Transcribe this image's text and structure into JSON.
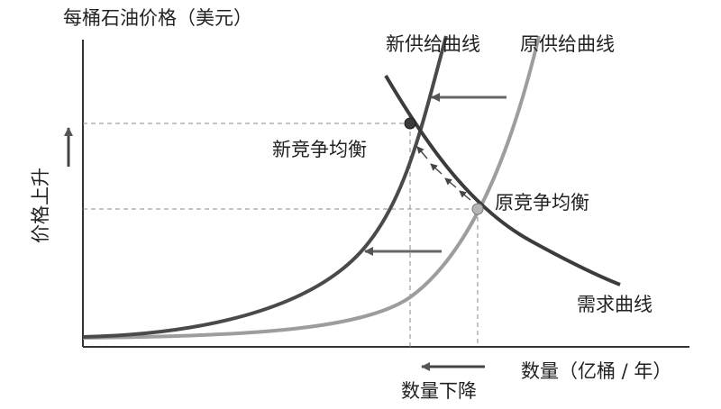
{
  "chart_data": {
    "type": "line",
    "title": "",
    "ylabel": "每桶石油价格（美元）",
    "xlabel": "数量（亿桶 / 年）",
    "side_label": "价格上升",
    "bottom_label": "数量下降",
    "curves": {
      "new_supply": {
        "name": "新供给曲线",
        "color": "#4a4a4a"
      },
      "old_supply": {
        "name": "原供给曲线",
        "color": "#9d9d9d"
      },
      "demand": {
        "name": "需求曲线",
        "color": "#3c3c3c"
      }
    },
    "points": {
      "new_equilibrium": {
        "label": "新竞争均衡"
      },
      "old_equilibrium": {
        "label": "原竞争均衡"
      }
    },
    "arrow_color": "#555555",
    "grid": false
  }
}
